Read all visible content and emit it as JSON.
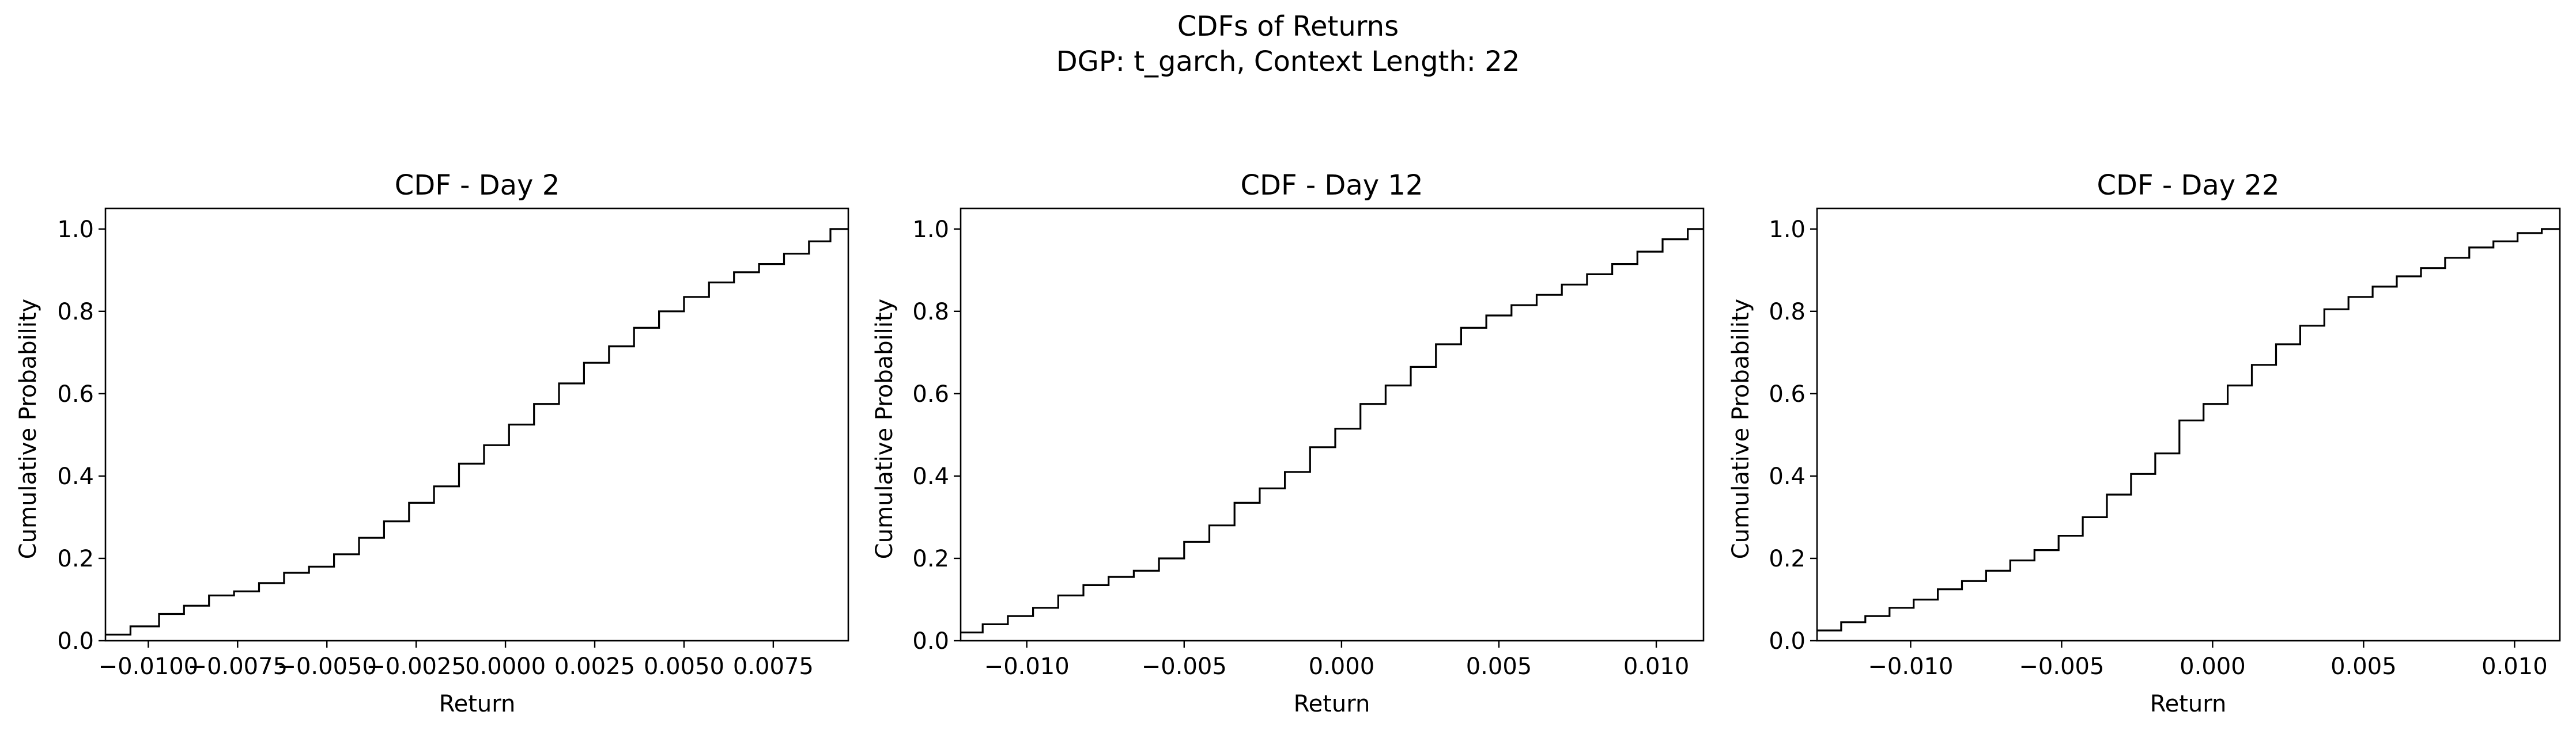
{
  "figure": {
    "suptitle_line1": "CDFs of Returns",
    "suptitle_line2": "DGP: t_garch, Context Length: 22"
  },
  "style": {
    "line_color": "#000000",
    "axes_color": "#000000",
    "background": "#ffffff"
  },
  "chart_data": [
    {
      "type": "line",
      "step": "post",
      "title": "CDF - Day 2",
      "xlabel": "Return",
      "ylabel": "Cumulative Probability",
      "xlim": [
        -0.0112,
        0.0096
      ],
      "ylim": [
        0,
        1.05
      ],
      "xticks": [
        -0.01,
        -0.0075,
        -0.005,
        -0.0025,
        0.0,
        0.0025,
        0.005,
        0.0075
      ],
      "xtick_labels": [
        "−0.0100",
        "−0.0075",
        "−0.0050",
        "−0.0025",
        "0.0000",
        "0.0025",
        "0.0050",
        "0.0075"
      ],
      "yticks": [
        0.0,
        0.2,
        0.4,
        0.6,
        0.8,
        1.0
      ],
      "ytick_labels": [
        "0.0",
        "0.2",
        "0.4",
        "0.6",
        "0.8",
        "1.0"
      ],
      "x": [
        -0.0112,
        -0.0105,
        -0.0097,
        -0.009,
        -0.0083,
        -0.0076,
        -0.0069,
        -0.0062,
        -0.0055,
        -0.0048,
        -0.0041,
        -0.0034,
        -0.0027,
        -0.002,
        -0.0013,
        -0.0006,
        0.0001,
        0.0008,
        0.0015,
        0.0022,
        0.0029,
        0.0036,
        0.0043,
        0.005,
        0.0057,
        0.0064,
        0.0071,
        0.0078,
        0.0085,
        0.0091,
        0.0096
      ],
      "y": [
        0.015,
        0.035,
        0.065,
        0.085,
        0.11,
        0.12,
        0.14,
        0.165,
        0.18,
        0.21,
        0.25,
        0.29,
        0.335,
        0.375,
        0.43,
        0.475,
        0.525,
        0.575,
        0.625,
        0.675,
        0.715,
        0.76,
        0.8,
        0.835,
        0.87,
        0.895,
        0.915,
        0.94,
        0.97,
        1.0,
        1.0
      ]
    },
    {
      "type": "line",
      "step": "post",
      "title": "CDF - Day 12",
      "xlabel": "Return",
      "ylabel": "Cumulative Probability",
      "xlim": [
        -0.0121,
        0.0115
      ],
      "ylim": [
        0,
        1.05
      ],
      "xticks": [
        -0.01,
        -0.005,
        0.0,
        0.005,
        0.01
      ],
      "xtick_labels": [
        "−0.010",
        "−0.005",
        "0.000",
        "0.005",
        "0.010"
      ],
      "yticks": [
        0.0,
        0.2,
        0.4,
        0.6,
        0.8,
        1.0
      ],
      "ytick_labels": [
        "0.0",
        "0.2",
        "0.4",
        "0.6",
        "0.8",
        "1.0"
      ],
      "x": [
        -0.0121,
        -0.0114,
        -0.0106,
        -0.0098,
        -0.009,
        -0.0082,
        -0.0074,
        -0.0066,
        -0.0058,
        -0.005,
        -0.0042,
        -0.0034,
        -0.0026,
        -0.0018,
        -0.001,
        -0.0002,
        0.0006,
        0.0014,
        0.0022,
        0.003,
        0.0038,
        0.0046,
        0.0054,
        0.0062,
        0.007,
        0.0078,
        0.0086,
        0.0094,
        0.0102,
        0.011,
        0.0115
      ],
      "y": [
        0.02,
        0.04,
        0.06,
        0.08,
        0.11,
        0.135,
        0.155,
        0.17,
        0.2,
        0.24,
        0.28,
        0.335,
        0.37,
        0.41,
        0.47,
        0.515,
        0.575,
        0.62,
        0.665,
        0.72,
        0.76,
        0.79,
        0.815,
        0.84,
        0.865,
        0.89,
        0.915,
        0.945,
        0.975,
        1.0,
        1.0
      ]
    },
    {
      "type": "line",
      "step": "post",
      "title": "CDF - Day 22",
      "xlabel": "Return",
      "ylabel": "Cumulative Probability",
      "xlim": [
        -0.0131,
        0.0115
      ],
      "ylim": [
        0,
        1.05
      ],
      "xticks": [
        -0.01,
        -0.005,
        0.0,
        0.005,
        0.01
      ],
      "xtick_labels": [
        "−0.010",
        "−0.005",
        "0.000",
        "0.005",
        "0.010"
      ],
      "yticks": [
        0.0,
        0.2,
        0.4,
        0.6,
        0.8,
        1.0
      ],
      "ytick_labels": [
        "0.0",
        "0.2",
        "0.4",
        "0.6",
        "0.8",
        "1.0"
      ],
      "x": [
        -0.0131,
        -0.0123,
        -0.0115,
        -0.0107,
        -0.0099,
        -0.0091,
        -0.0083,
        -0.0075,
        -0.0067,
        -0.0059,
        -0.0051,
        -0.0043,
        -0.0035,
        -0.0027,
        -0.0019,
        -0.0011,
        -0.0003,
        0.0005,
        0.0013,
        0.0021,
        0.0029,
        0.0037,
        0.0045,
        0.0053,
        0.0061,
        0.0069,
        0.0077,
        0.0085,
        0.0093,
        0.0101,
        0.0109,
        0.0115
      ],
      "y": [
        0.025,
        0.045,
        0.06,
        0.08,
        0.1,
        0.125,
        0.145,
        0.17,
        0.195,
        0.22,
        0.255,
        0.3,
        0.355,
        0.405,
        0.455,
        0.535,
        0.575,
        0.62,
        0.67,
        0.72,
        0.765,
        0.805,
        0.835,
        0.86,
        0.885,
        0.905,
        0.93,
        0.955,
        0.97,
        0.99,
        1.0,
        1.0
      ]
    }
  ]
}
